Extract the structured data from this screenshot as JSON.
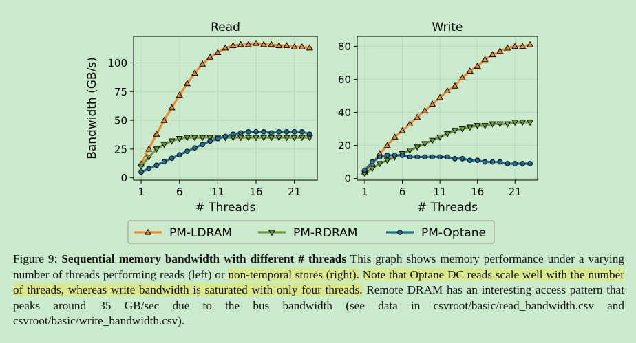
{
  "chart_data": [
    {
      "type": "line",
      "title": "Read",
      "xlabel": "# Threads",
      "ylabel": "Bandwidth (GB/s)",
      "xticks": [
        1,
        6,
        11,
        16,
        21
      ],
      "yticks": [
        0,
        25,
        50,
        75,
        100
      ],
      "xlim": [
        0,
        24
      ],
      "ylim": [
        -2,
        123
      ],
      "grid": true,
      "x": [
        1,
        2,
        3,
        4,
        5,
        6,
        7,
        8,
        9,
        10,
        11,
        12,
        13,
        14,
        15,
        16,
        17,
        18,
        19,
        20,
        21,
        22,
        23
      ],
      "series": [
        {
          "name": "PM-LDRAM",
          "color": "#f08c28",
          "marker": "triangle-up",
          "values": [
            12,
            25,
            38,
            50,
            61,
            72,
            82,
            91,
            99,
            105,
            109,
            113,
            115,
            116,
            116,
            117,
            116,
            116,
            115,
            115,
            114,
            114,
            113
          ]
        },
        {
          "name": "PM-RDRAM",
          "color": "#6f9a3c",
          "marker": "triangle-down",
          "values": [
            10,
            18,
            25,
            29,
            32,
            34,
            35,
            35,
            35,
            35,
            35,
            35,
            35,
            35,
            35,
            35,
            35,
            35,
            35,
            35,
            35,
            35,
            35
          ]
        },
        {
          "name": "PM-Optane",
          "color": "#1b6f96",
          "marker": "circle",
          "values": [
            5,
            8,
            11,
            14,
            17,
            20,
            23,
            26,
            29,
            32,
            34,
            36,
            38,
            39,
            40,
            40,
            40,
            39,
            40,
            40,
            40,
            40,
            38
          ]
        }
      ]
    },
    {
      "type": "line",
      "title": "Write",
      "xlabel": "# Threads",
      "ylabel": "",
      "xticks": [
        1,
        6,
        11,
        16,
        21
      ],
      "yticks": [
        0,
        20,
        40,
        60,
        80
      ],
      "xlim": [
        0,
        24
      ],
      "ylim": [
        -1,
        86
      ],
      "grid": true,
      "x": [
        1,
        2,
        3,
        4,
        5,
        6,
        7,
        8,
        9,
        10,
        11,
        12,
        13,
        14,
        15,
        16,
        17,
        18,
        19,
        20,
        21,
        22,
        23
      ],
      "series": [
        {
          "name": "PM-LDRAM",
          "color": "#f08c28",
          "marker": "triangle-up",
          "values": [
            4,
            9,
            15,
            20,
            25,
            29,
            33,
            37,
            41,
            45,
            49,
            53,
            56,
            61,
            65,
            68,
            72,
            75,
            77,
            79,
            80,
            80,
            81
          ]
        },
        {
          "name": "PM-RDRAM",
          "color": "#6f9a3c",
          "marker": "triangle-down",
          "values": [
            3,
            6,
            9,
            11,
            13,
            15,
            17,
            19,
            21,
            23,
            25,
            27,
            29,
            30,
            31,
            32,
            32,
            33,
            33,
            33,
            34,
            34,
            34
          ]
        },
        {
          "name": "PM-Optane",
          "color": "#1b6f96",
          "marker": "circle",
          "values": [
            5,
            10,
            13,
            14,
            14,
            14,
            13,
            13,
            13,
            13,
            13,
            13,
            12,
            12,
            11,
            11,
            10,
            10,
            10,
            9,
            9,
            9,
            9
          ]
        }
      ]
    }
  ],
  "legend": {
    "placement": "bottom-center",
    "items": [
      "PM-LDRAM",
      "PM-RDRAM",
      "PM-Optane"
    ]
  },
  "caption": {
    "figure_label": "Figure 9:",
    "bold_title": "Sequential memory bandwidth with different # threads",
    "text_1": " This graph shows memory performance under a varying number of threads performing reads (left) or ",
    "highlight_1": "non-temporal stores (right).",
    "text_2": " ",
    "highlight_2": "Note that Optane DC reads scale well with the number of threads, whereas write bandwidth is saturated with only four threads.",
    "text_3": " Remote DRAM has an interesting access pattern that peaks around 35 GB/sec due to the bus bandwidth (see data in csvroot/basic/read_bandwidth.csv and csvroot/basic/write_bandwidth.csv)."
  }
}
